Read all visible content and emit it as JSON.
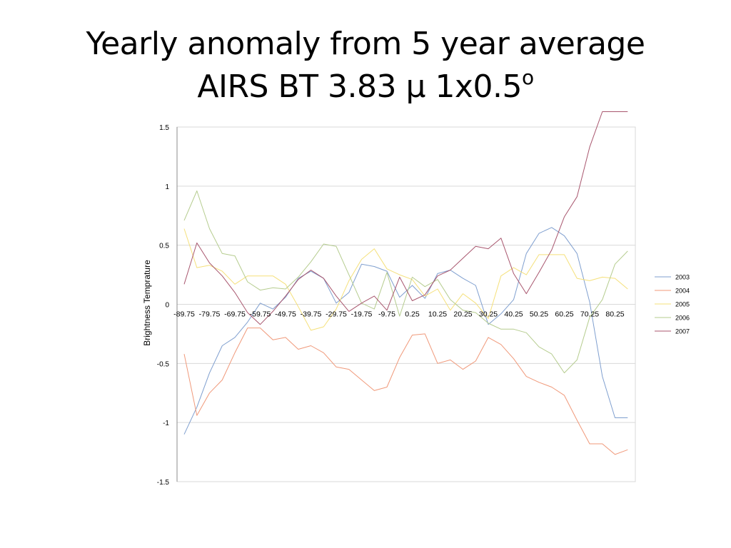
{
  "slide": {
    "title_line1": "Yearly anomaly from 5 year average",
    "title_line2_main": "AIRS BT 3.83 µ 1x0.5",
    "title_line2_sup": "o"
  },
  "chart_data": {
    "type": "line",
    "title": "Yearly anomaly from 5 year average AIRS BT 3.83 µ 1x0.5o",
    "xlabel": "",
    "ylabel": "Brightness Temprature",
    "ylim": [
      -1.5,
      1.5
    ],
    "yticks": [
      1.5,
      1,
      0.5,
      0,
      -0.5,
      -1,
      -1.5
    ],
    "ytick_labels": [
      "1.5",
      "1",
      "0.5",
      "0",
      "-0.5",
      "-1",
      "-1.5"
    ],
    "x": [
      -89.75,
      -84.75,
      -79.75,
      -74.75,
      -69.75,
      -64.75,
      -59.75,
      -54.75,
      -49.75,
      -44.75,
      -39.75,
      -34.75,
      -29.75,
      -24.75,
      -19.75,
      -14.75,
      -9.75,
      -4.75,
      0.25,
      5.25,
      10.25,
      15.25,
      20.25,
      25.25,
      30.25,
      35.25,
      40.25,
      45.25,
      50.25,
      55.25,
      60.25,
      65.25,
      70.25,
      75.25,
      80.25,
      85.25
    ],
    "x_tick_labels": [
      "-89.75",
      "-79.75",
      "-69.75",
      "-59.75",
      "-49.75",
      "-39.75",
      "-29.75",
      "-19.75",
      "-9.75",
      "0.25",
      "10.25",
      "20.25",
      "30.25",
      "40.25",
      "50.25",
      "60.25",
      "70.25",
      "80.25"
    ],
    "grid": true,
    "legend_position": "right",
    "series": [
      {
        "name": "2003",
        "color": "#7f9fcf",
        "values": [
          -1.1,
          -0.87,
          -0.58,
          -0.35,
          -0.28,
          -0.15,
          0.01,
          -0.04,
          0.06,
          0.22,
          0.28,
          0.22,
          0.01,
          0.1,
          0.34,
          0.32,
          0.28,
          0.06,
          0.16,
          0.05,
          0.26,
          0.29,
          0.22,
          0.16,
          -0.17,
          -0.08,
          0.04,
          0.43,
          0.6,
          0.65,
          0.58,
          0.43,
          0.02,
          -0.61,
          -0.96,
          -0.96
        ]
      },
      {
        "name": "2004",
        "color": "#f0997a",
        "values": [
          -0.42,
          -0.94,
          -0.75,
          -0.64,
          -0.41,
          -0.2,
          -0.2,
          -0.3,
          -0.28,
          -0.38,
          -0.35,
          -0.41,
          -0.53,
          -0.55,
          -0.64,
          -0.73,
          -0.7,
          -0.45,
          -0.26,
          -0.25,
          -0.5,
          -0.47,
          -0.55,
          -0.48,
          -0.28,
          -0.34,
          -0.46,
          -0.61,
          -0.66,
          -0.7,
          -0.77,
          -0.98,
          -1.18,
          -1.18,
          -1.27,
          -1.23
        ]
      },
      {
        "name": "2005",
        "color": "#f5e07a",
        "values": [
          0.64,
          0.31,
          0.33,
          0.28,
          0.17,
          0.24,
          0.24,
          0.24,
          0.17,
          -0.02,
          -0.22,
          -0.19,
          -0.04,
          0.2,
          0.38,
          0.47,
          0.3,
          0.25,
          0.21,
          0.07,
          0.13,
          -0.05,
          0.09,
          0.01,
          -0.12,
          0.24,
          0.31,
          0.25,
          0.42,
          0.42,
          0.42,
          0.22,
          0.2,
          0.23,
          0.22,
          0.13
        ]
      },
      {
        "name": "2006",
        "color": "#b5cc8e",
        "values": [
          0.71,
          0.96,
          0.64,
          0.43,
          0.41,
          0.19,
          0.12,
          0.14,
          0.13,
          0.23,
          0.36,
          0.51,
          0.49,
          0.25,
          0.01,
          -0.04,
          0.27,
          -0.1,
          0.23,
          0.15,
          0.21,
          0.04,
          -0.05,
          -0.07,
          -0.16,
          -0.21,
          -0.21,
          -0.24,
          -0.36,
          -0.42,
          -0.58,
          -0.47,
          -0.11,
          0.04,
          0.34,
          0.45
        ]
      },
      {
        "name": "2007",
        "color": "#a8566e",
        "values": [
          0.17,
          0.52,
          0.35,
          0.24,
          0.1,
          -0.07,
          -0.17,
          -0.06,
          0.07,
          0.21,
          0.29,
          0.22,
          0.07,
          -0.06,
          0.01,
          0.07,
          -0.05,
          0.23,
          0.03,
          0.08,
          0.24,
          0.29,
          0.39,
          0.49,
          0.47,
          0.56,
          0.26,
          0.09,
          0.27,
          0.46,
          0.74,
          0.91,
          1.33,
          1.63,
          1.63,
          1.63
        ]
      }
    ]
  }
}
